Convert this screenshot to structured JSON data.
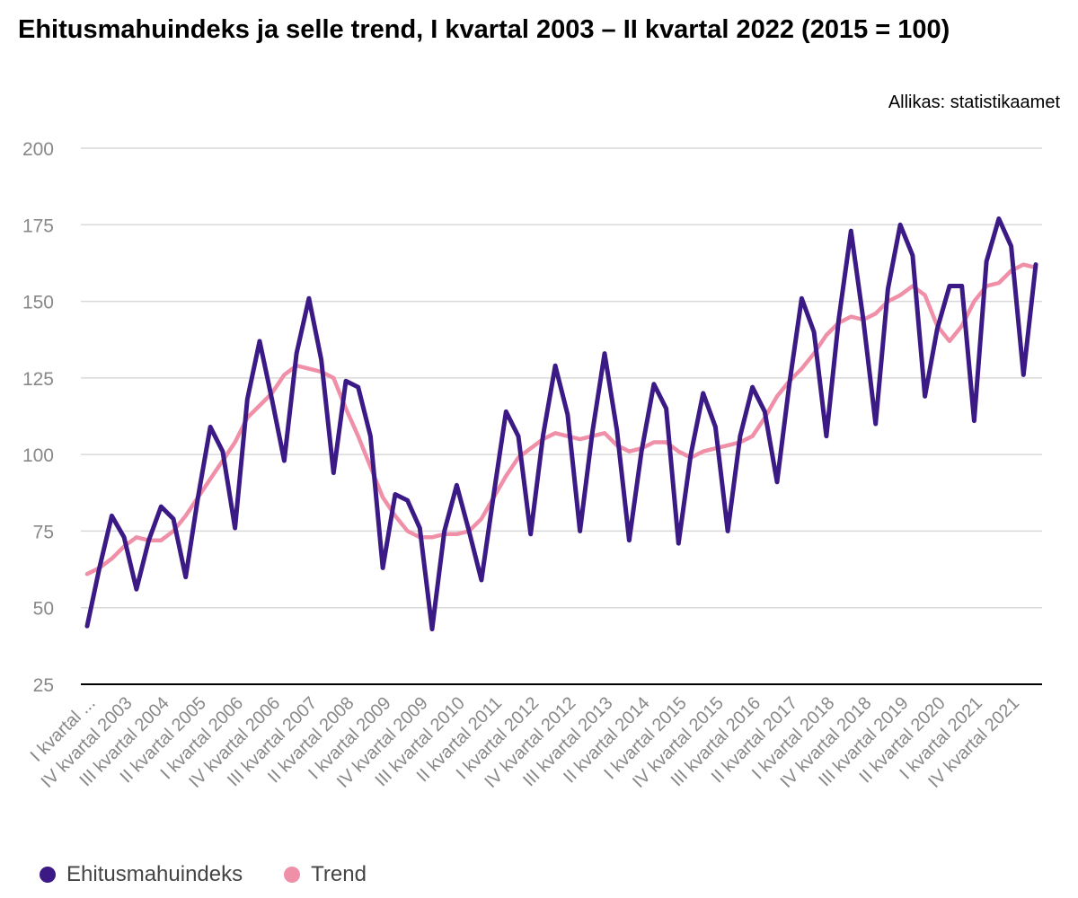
{
  "colors": {
    "index": "#3b1a86",
    "trend": "#f08fa8",
    "grid": "#d9d9d9",
    "tick": "#888888",
    "axis": "#000000"
  },
  "chart_data": {
    "type": "line",
    "title": "Ehitusmahuindeks ja selle trend, I kvartal 2003 – II kvartal 2022 (2015 = 100)",
    "source": "Allikas: statistikaamet",
    "ylim": [
      25,
      200
    ],
    "yticks": [
      25,
      50,
      75,
      100,
      125,
      150,
      175,
      200
    ],
    "grid": true,
    "legend_position": "bottom-left",
    "x": [
      "I kvartal 2003",
      "II kvartal 2003",
      "III kvartal 2003",
      "IV kvartal 2003",
      "I kvartal 2004",
      "II kvartal 2004",
      "III kvartal 2004",
      "IV kvartal 2004",
      "I kvartal 2005",
      "II kvartal 2005",
      "III kvartal 2005",
      "IV kvartal 2005",
      "I kvartal 2006",
      "II kvartal 2006",
      "III kvartal 2006",
      "IV kvartal 2006",
      "I kvartal 2007",
      "II kvartal 2007",
      "III kvartal 2007",
      "IV kvartal 2007",
      "I kvartal 2008",
      "II kvartal 2008",
      "III kvartal 2008",
      "IV kvartal 2008",
      "I kvartal 2009",
      "II kvartal 2009",
      "III kvartal 2009",
      "IV kvartal 2009",
      "I kvartal 2010",
      "II kvartal 2010",
      "III kvartal 2010",
      "IV kvartal 2010",
      "I kvartal 2011",
      "II kvartal 2011",
      "III kvartal 2011",
      "IV kvartal 2011",
      "I kvartal 2012",
      "II kvartal 2012",
      "III kvartal 2012",
      "IV kvartal 2012",
      "I kvartal 2013",
      "II kvartal 2013",
      "III kvartal 2013",
      "IV kvartal 2013",
      "I kvartal 2014",
      "II kvartal 2014",
      "III kvartal 2014",
      "IV kvartal 2014",
      "I kvartal 2015",
      "II kvartal 2015",
      "III kvartal 2015",
      "IV kvartal 2015",
      "I kvartal 2016",
      "II kvartal 2016",
      "III kvartal 2016",
      "IV kvartal 2016",
      "I kvartal 2017",
      "II kvartal 2017",
      "III kvartal 2017",
      "IV kvartal 2017",
      "I kvartal 2018",
      "II kvartal 2018",
      "III kvartal 2018",
      "IV kvartal 2018",
      "I kvartal 2019",
      "II kvartal 2019",
      "III kvartal 2019",
      "IV kvartal 2019",
      "I kvartal 2020",
      "II kvartal 2020",
      "III kvartal 2020",
      "IV kvartal 2020",
      "I kvartal 2021",
      "II kvartal 2021",
      "III kvartal 2021",
      "IV kvartal 2021",
      "I kvartal 2022",
      "II kvartal 2022"
    ],
    "xtick_labels": [
      {
        "i": 0,
        "label": "I kvartal ..."
      },
      {
        "i": 3,
        "label": "IV kvartal 2003"
      },
      {
        "i": 6,
        "label": "III kvartal 2004"
      },
      {
        "i": 9,
        "label": "II kvartal 2005"
      },
      {
        "i": 12,
        "label": "I kvartal 2006"
      },
      {
        "i": 15,
        "label": "IV kvartal 2006"
      },
      {
        "i": 18,
        "label": "III kvartal 2007"
      },
      {
        "i": 21,
        "label": "II kvartal 2008"
      },
      {
        "i": 24,
        "label": "I kvartal 2009"
      },
      {
        "i": 27,
        "label": "IV kvartal 2009"
      },
      {
        "i": 30,
        "label": "III kvartal 2010"
      },
      {
        "i": 33,
        "label": "II kvartal 2011"
      },
      {
        "i": 36,
        "label": "I kvartal 2012"
      },
      {
        "i": 39,
        "label": "IV kvartal 2012"
      },
      {
        "i": 42,
        "label": "III kvartal 2013"
      },
      {
        "i": 45,
        "label": "II kvartal 2014"
      },
      {
        "i": 48,
        "label": "I kvartal 2015"
      },
      {
        "i": 51,
        "label": "IV kvartal 2015"
      },
      {
        "i": 54,
        "label": "III kvartal 2016"
      },
      {
        "i": 57,
        "label": "II kvartal 2017"
      },
      {
        "i": 60,
        "label": "I kvartal 2018"
      },
      {
        "i": 63,
        "label": "IV kvartal 2018"
      },
      {
        "i": 66,
        "label": "III kvartal 2019"
      },
      {
        "i": 69,
        "label": "II kvartal 2020"
      },
      {
        "i": 72,
        "label": "I kvartal 2021"
      },
      {
        "i": 75,
        "label": "IV kvartal 2021"
      }
    ],
    "series": [
      {
        "name": "Ehitusmahuindeks",
        "color": "#3b1a86",
        "values": [
          44,
          63,
          80,
          73,
          56,
          72,
          83,
          79,
          60,
          86,
          109,
          101,
          76,
          118,
          137,
          118,
          98,
          133,
          151,
          131,
          94,
          124,
          122,
          106,
          63,
          87,
          85,
          76,
          43,
          75,
          90,
          75,
          59,
          87,
          114,
          106,
          74,
          106,
          129,
          113,
          75,
          107,
          133,
          108,
          72,
          101,
          123,
          115,
          71,
          100,
          120,
          109,
          75,
          106,
          122,
          114,
          91,
          123,
          151,
          140,
          106,
          144,
          173,
          144,
          110,
          154,
          175,
          165,
          119,
          141,
          155,
          155,
          111,
          163,
          177,
          168,
          126,
          162
        ]
      },
      {
        "name": "Trend",
        "color": "#f08fa8",
        "values": [
          61,
          63,
          66,
          70,
          73,
          72,
          72,
          75,
          80,
          86,
          92,
          98,
          104,
          112,
          116,
          120,
          126,
          129,
          128,
          127,
          125,
          115,
          106,
          96,
          86,
          80,
          75,
          73,
          73,
          74,
          74,
          75,
          79,
          86,
          93,
          99,
          102,
          105,
          107,
          106,
          105,
          106,
          107,
          103,
          101,
          102,
          104,
          104,
          101,
          99,
          101,
          102,
          103,
          104,
          106,
          112,
          119,
          124,
          128,
          133,
          139,
          143,
          145,
          144,
          146,
          150,
          152,
          155,
          152,
          142,
          137,
          142,
          150,
          155,
          156,
          160,
          162,
          161
        ]
      }
    ]
  }
}
